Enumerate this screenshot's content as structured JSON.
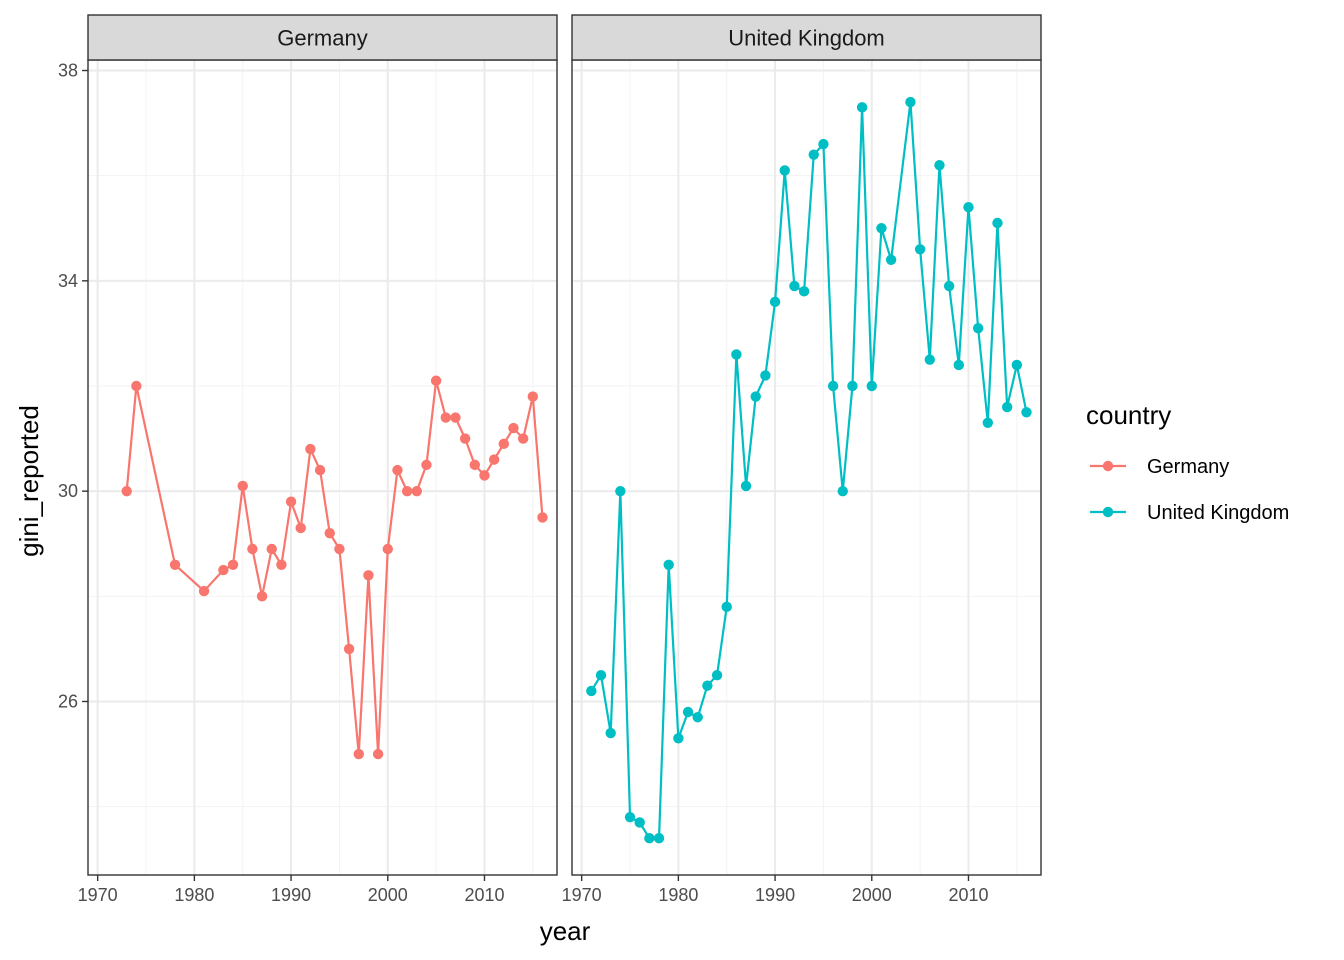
{
  "chart_data": {
    "type": "line",
    "facet_by": "country",
    "xlabel": "year",
    "ylabel": "gini_reported",
    "xlim": [
      1969,
      2017.5
    ],
    "ylim": [
      22.7,
      38.2
    ],
    "x_ticks": [
      1970,
      1980,
      1990,
      2000,
      2010
    ],
    "y_ticks": [
      26,
      30,
      34,
      38
    ],
    "grid": true,
    "legend": {
      "title": "country",
      "placement": "right",
      "entries": [
        "Germany",
        "United Kingdom"
      ]
    },
    "panels": [
      {
        "label": "Germany",
        "series": {
          "name": "Germany",
          "color": "#F8766D",
          "x": [
            1973,
            1974,
            1978,
            1981,
            1983,
            1984,
            1985,
            1986,
            1987,
            1988,
            1989,
            1990,
            1991,
            1992,
            1993,
            1994,
            1995,
            1996,
            1997,
            1998,
            1999,
            2000,
            2001,
            2002,
            2003,
            2004,
            2005,
            2006,
            2007,
            2008,
            2009,
            2010,
            2011,
            2012,
            2013,
            2014,
            2015,
            2016
          ],
          "y": [
            30.0,
            32.0,
            28.6,
            28.1,
            28.5,
            28.6,
            30.1,
            28.9,
            28.0,
            28.9,
            28.6,
            29.8,
            29.3,
            30.8,
            30.4,
            29.2,
            28.9,
            27.0,
            25.0,
            28.4,
            25.0,
            28.9,
            30.4,
            30.0,
            30.0,
            30.5,
            32.1,
            31.4,
            31.4,
            31.0,
            30.5,
            30.3,
            30.6,
            30.9,
            31.2,
            31.0,
            31.8,
            29.5
          ]
        }
      },
      {
        "label": "United Kingdom",
        "series": {
          "name": "United Kingdom",
          "color": "#00BFC4",
          "x": [
            1971,
            1972,
            1973,
            1974,
            1975,
            1976,
            1977,
            1978,
            1979,
            1980,
            1981,
            1982,
            1983,
            1984,
            1985,
            1986,
            1987,
            1988,
            1989,
            1990,
            1991,
            1992,
            1993,
            1994,
            1995,
            1996,
            1997,
            1998,
            1999,
            2000,
            2001,
            2002,
            2004,
            2005,
            2006,
            2007,
            2008,
            2009,
            2010,
            2011,
            2012,
            2013,
            2014,
            2015,
            2016
          ],
          "y": [
            26.2,
            26.5,
            25.4,
            30.0,
            23.8,
            23.7,
            23.4,
            23.4,
            28.6,
            25.3,
            25.8,
            25.7,
            26.3,
            26.5,
            27.8,
            32.6,
            30.1,
            31.8,
            32.2,
            33.6,
            36.1,
            33.9,
            33.8,
            36.4,
            36.6,
            32.0,
            30.0,
            32.0,
            37.3,
            32.0,
            35.0,
            34.4,
            37.4,
            34.6,
            32.5,
            36.2,
            33.9,
            32.4,
            35.4,
            33.1,
            31.3,
            35.1,
            31.6,
            32.4,
            31.5
          ]
        }
      }
    ]
  }
}
